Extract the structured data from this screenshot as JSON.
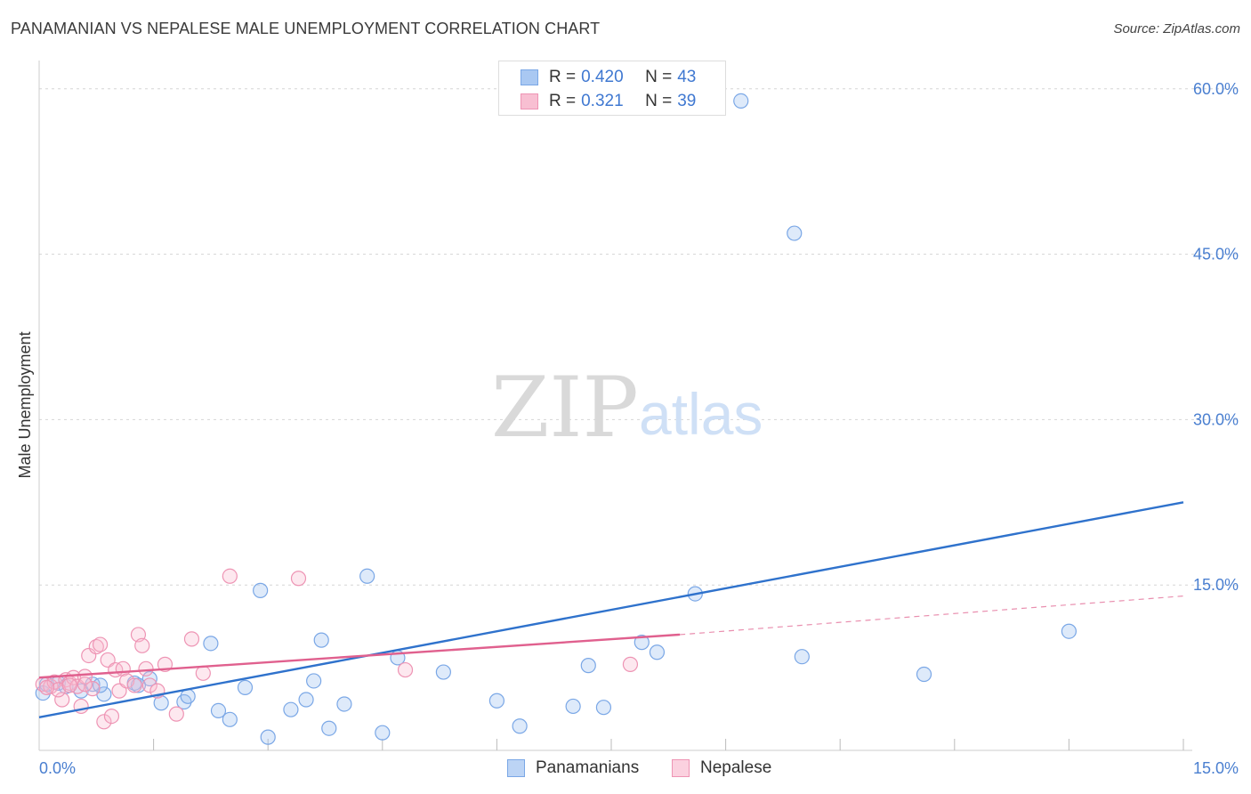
{
  "header": {
    "title": "PANAMANIAN VS NEPALESE MALE UNEMPLOYMENT CORRELATION CHART",
    "source": "Source: ZipAtlas.com"
  },
  "watermark": {
    "zip": "ZIP",
    "atlas": "atlas"
  },
  "legend": {
    "rows": [
      {
        "r_label": "R =",
        "r_value": "0.420",
        "n_label": "N =",
        "n_value": "43",
        "color": "#a9c8f2",
        "border": "#7aa7e6"
      },
      {
        "r_label": "R =",
        "r_value": "0.321",
        "n_label": "N =",
        "n_value": "39",
        "color": "#f8bfd2",
        "border": "#ee94b4"
      }
    ]
  },
  "bottom_legend": [
    {
      "label": "Panamanians",
      "color": "#bcd4f5",
      "border": "#7aa7e6"
    },
    {
      "label": "Nepalese",
      "color": "#fbd1df",
      "border": "#ee94b4"
    }
  ],
  "chart_data": {
    "type": "scatter",
    "title": "PANAMANIAN VS NEPALESE MALE UNEMPLOYMENT CORRELATION CHART",
    "xlabel": "",
    "ylabel": "Male Unemployment",
    "xlim": [
      0,
      15
    ],
    "ylim": [
      0,
      62
    ],
    "x_tick_labels": [
      "0.0%",
      "15.0%"
    ],
    "y_ticks": [
      15,
      30,
      45,
      60
    ],
    "y_tick_labels": [
      "15.0%",
      "30.0%",
      "45.0%",
      "60.0%"
    ],
    "grid": true,
    "series": [
      {
        "name": "Panamanians",
        "color": "#7aa7e6",
        "fill": "rgba(160,195,240,0.35)",
        "line_color": "#2f72cc",
        "trend": {
          "x": [
            0,
            15
          ],
          "y": [
            3.0,
            22.5
          ]
        },
        "points": [
          [
            0.05,
            5.2
          ],
          [
            0.1,
            6.0
          ],
          [
            0.25,
            6.1
          ],
          [
            0.35,
            5.8
          ],
          [
            0.55,
            5.4
          ],
          [
            0.7,
            6.0
          ],
          [
            0.85,
            5.1
          ],
          [
            1.25,
            6.1
          ],
          [
            1.45,
            6.5
          ],
          [
            1.6,
            4.3
          ],
          [
            1.9,
            4.4
          ],
          [
            1.95,
            4.9
          ],
          [
            2.25,
            9.7
          ],
          [
            2.35,
            3.6
          ],
          [
            2.5,
            2.8
          ],
          [
            2.7,
            5.7
          ],
          [
            2.9,
            14.5
          ],
          [
            3.0,
            1.2
          ],
          [
            3.3,
            3.7
          ],
          [
            3.5,
            4.6
          ],
          [
            3.6,
            6.3
          ],
          [
            3.7,
            10.0
          ],
          [
            3.8,
            2.0
          ],
          [
            4.0,
            4.2
          ],
          [
            4.3,
            15.8
          ],
          [
            4.5,
            1.6
          ],
          [
            4.7,
            8.4
          ],
          [
            5.3,
            7.1
          ],
          [
            6.0,
            4.5
          ],
          [
            6.3,
            2.2
          ],
          [
            7.0,
            4.0
          ],
          [
            7.2,
            7.7
          ],
          [
            7.4,
            3.9
          ],
          [
            7.9,
            9.8
          ],
          [
            8.1,
            8.9
          ],
          [
            8.6,
            14.2
          ],
          [
            9.2,
            58.9
          ],
          [
            9.9,
            46.9
          ],
          [
            10.0,
            8.5
          ],
          [
            11.6,
            6.9
          ],
          [
            13.5,
            10.8
          ],
          [
            0.8,
            5.9
          ],
          [
            1.3,
            5.9
          ]
        ]
      },
      {
        "name": "Nepalese",
        "color": "#ee94b4",
        "fill": "rgba(248,190,210,0.35)",
        "line_color": "#e0608e",
        "trend": {
          "x": [
            0,
            8.4
          ],
          "y": [
            6.6,
            10.5
          ]
        },
        "trend_ext": {
          "x": [
            8.4,
            15
          ],
          "y": [
            10.5,
            14.0
          ]
        },
        "points": [
          [
            0.05,
            6.0
          ],
          [
            0.15,
            5.8
          ],
          [
            0.2,
            6.2
          ],
          [
            0.3,
            4.6
          ],
          [
            0.35,
            6.4
          ],
          [
            0.4,
            6.1
          ],
          [
            0.45,
            6.6
          ],
          [
            0.5,
            5.8
          ],
          [
            0.55,
            4.0
          ],
          [
            0.6,
            6.7
          ],
          [
            0.65,
            8.6
          ],
          [
            0.7,
            5.6
          ],
          [
            0.75,
            9.4
          ],
          [
            0.8,
            9.6
          ],
          [
            0.85,
            2.6
          ],
          [
            0.9,
            8.2
          ],
          [
            0.95,
            3.1
          ],
          [
            1.0,
            7.3
          ],
          [
            1.05,
            5.4
          ],
          [
            1.1,
            7.4
          ],
          [
            1.15,
            6.3
          ],
          [
            1.25,
            5.9
          ],
          [
            1.3,
            10.5
          ],
          [
            1.35,
            9.5
          ],
          [
            1.4,
            7.4
          ],
          [
            1.45,
            5.9
          ],
          [
            1.55,
            5.4
          ],
          [
            1.65,
            7.8
          ],
          [
            1.8,
            3.3
          ],
          [
            2.0,
            10.1
          ],
          [
            2.15,
            7.0
          ],
          [
            2.5,
            15.8
          ],
          [
            3.4,
            15.6
          ],
          [
            4.8,
            7.3
          ],
          [
            7.75,
            7.8
          ],
          [
            0.25,
            5.5
          ],
          [
            0.1,
            5.7
          ],
          [
            0.4,
            5.9
          ],
          [
            0.6,
            6.0
          ]
        ]
      }
    ]
  }
}
